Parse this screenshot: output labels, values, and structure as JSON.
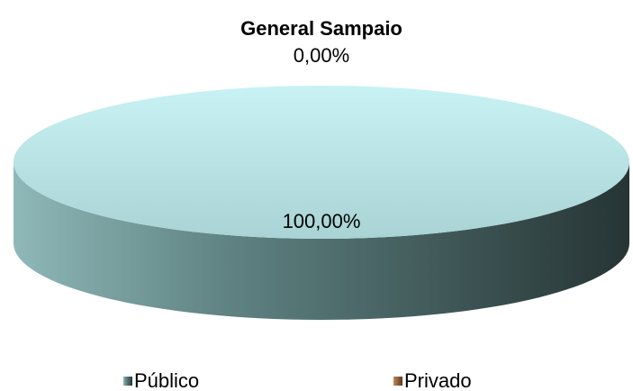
{
  "chart_data": {
    "type": "pie",
    "title": "General Sampaio",
    "categories": [
      "Público",
      "Privado"
    ],
    "values": [
      100,
      0
    ],
    "value_labels": [
      "100,00%",
      "0,00%"
    ],
    "colors": [
      "#c4eced",
      "#e0a878"
    ],
    "legend": "bottom"
  }
}
